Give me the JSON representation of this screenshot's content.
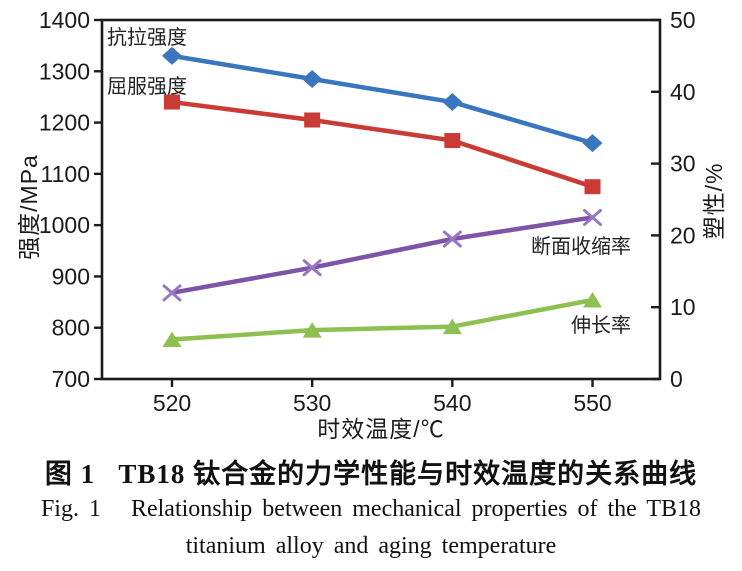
{
  "chart_data": {
    "type": "line",
    "x": [
      520,
      530,
      540,
      550
    ],
    "x_tick_labels": [
      "520",
      "530",
      "540",
      "550"
    ],
    "xlabel": "时效温度/℃",
    "left_axis": {
      "label": "强度/MPa",
      "min": 700,
      "max": 1400,
      "ticks": [
        700,
        800,
        900,
        1000,
        1100,
        1200,
        1300,
        1400
      ]
    },
    "right_axis": {
      "label": "塑性/%",
      "min": 0,
      "max": 50,
      "ticks": [
        0,
        10,
        20,
        30,
        40,
        50
      ]
    },
    "grid": false,
    "legend_position": "inline-annotations",
    "series": [
      {
        "name": "抗拉强度",
        "axis": "left",
        "marker": "diamond",
        "color": "#3a76be",
        "marker_color": "#3a76be",
        "values": [
          1330,
          1285,
          1240,
          1160
        ]
      },
      {
        "name": "屈服强度",
        "axis": "left",
        "marker": "square",
        "color": "#c93b34",
        "marker_color": "#c93b34",
        "values": [
          1240,
          1205,
          1165,
          1075
        ]
      },
      {
        "name": "断面收缩率",
        "axis": "right",
        "marker": "x",
        "color": "#7e54a8",
        "marker_color": "#9678c2",
        "values": [
          12,
          15.5,
          19.5,
          22.5
        ]
      },
      {
        "name": "伸长率",
        "axis": "right",
        "marker": "triangle",
        "color": "#8ec051",
        "marker_color": "#8ec051",
        "values": [
          5.5,
          6.8,
          7.3,
          11
        ]
      }
    ]
  },
  "caption": {
    "zh": "图 1   TB18 钛合金的力学性能与时效温度的关系曲线",
    "en_line1": "Fig. 1   Relationship between mechanical properties of the TB18",
    "en_line2": "titanium alloy and aging temperature"
  },
  "colors": {
    "axis": "#1b1b1b",
    "background": "#ffffff"
  }
}
